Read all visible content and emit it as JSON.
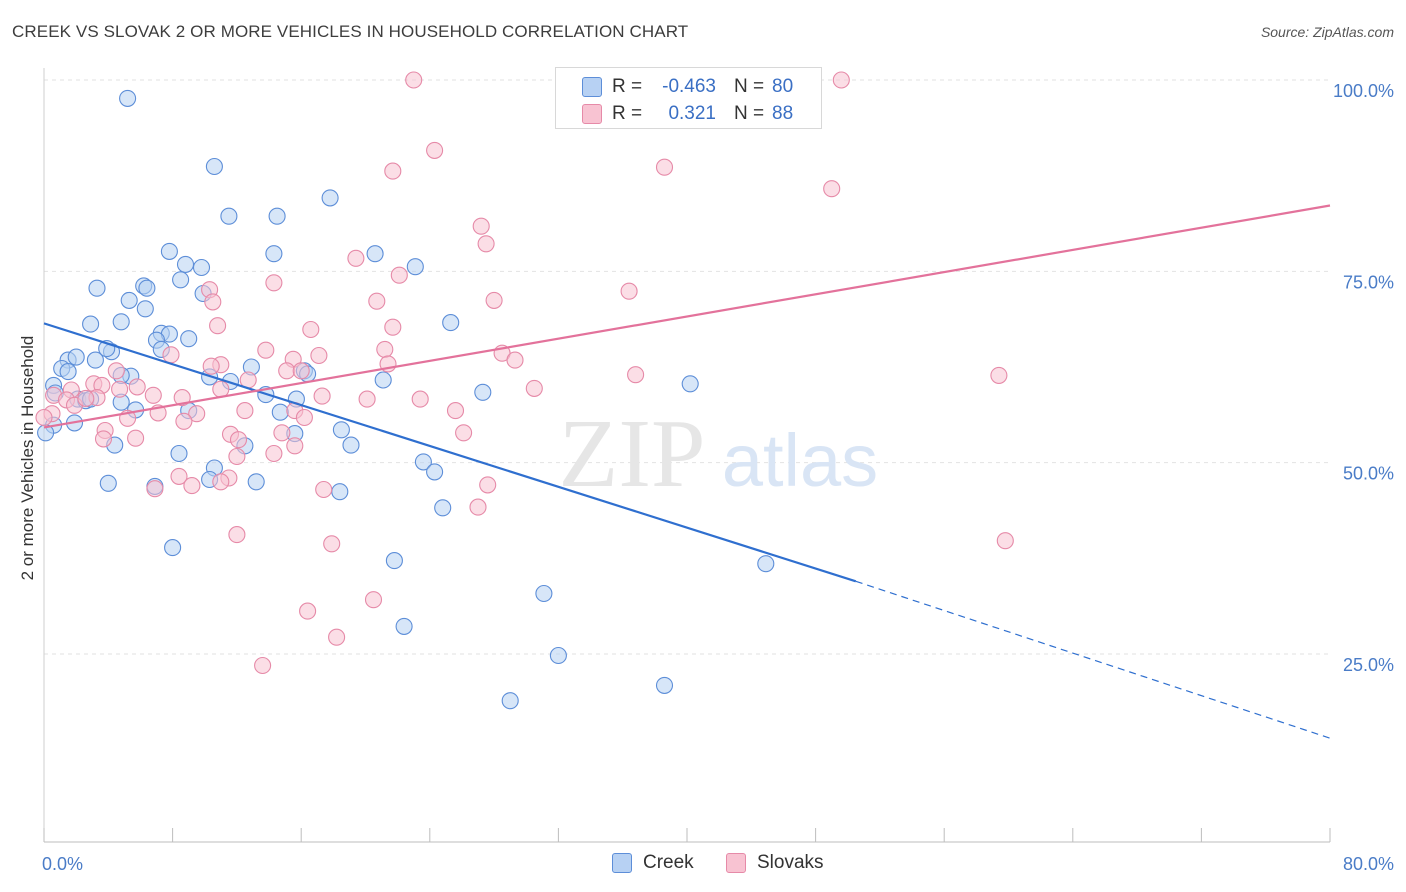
{
  "title": "CREEK VS SLOVAK 2 OR MORE VEHICLES IN HOUSEHOLD CORRELATION CHART",
  "source": "Source: ZipAtlas.com",
  "watermark": {
    "zip": "ZIP",
    "atlas": "atlas"
  },
  "legend": {
    "r_label": "R =",
    "n_label": "N =",
    "rows": [
      {
        "r": "-0.463",
        "n": "80",
        "fill": "#b7d1f3",
        "stroke": "#5d8ed8"
      },
      {
        "r": "0.321",
        "n": "88",
        "fill": "#f8c3d2",
        "stroke": "#e68aa8"
      }
    ]
  },
  "bottom_legend": [
    "Creek",
    "Slovaks"
  ],
  "chart_data": {
    "type": "scatter",
    "title": "CREEK VS SLOVAK 2 OR MORE VEHICLES IN HOUSEHOLD CORRELATION CHART",
    "xlabel": "",
    "ylabel": "2 or more Vehicles in Household",
    "xlim": [
      0,
      80
    ],
    "ylim": [
      0,
      105
    ],
    "x_tick_labels": [
      "0.0%",
      "80.0%"
    ],
    "y_ticks": [
      25,
      50,
      75,
      100
    ],
    "y_tick_labels": [
      "25.0%",
      "50.0%",
      "75.0%",
      "100.0%"
    ],
    "grid": true,
    "legend_position": "top-center",
    "series": [
      {
        "name": "Creek",
        "color": "#5d8ed8",
        "fill": "#b7d1f3",
        "trend": {
          "x": [
            0,
            50.5
          ],
          "y": [
            68.2,
            34.5
          ],
          "dashed_to": [
            80,
            14.0
          ],
          "color": "#2f6fcf"
        },
        "points": [
          [
            5.2,
            97.6
          ],
          [
            10.6,
            88.7
          ],
          [
            11.5,
            82.2
          ],
          [
            14.5,
            82.2
          ],
          [
            17.8,
            84.6
          ],
          [
            7.8,
            77.6
          ],
          [
            14.3,
            77.3
          ],
          [
            20.6,
            77.3
          ],
          [
            23.1,
            75.6
          ],
          [
            8.8,
            75.9
          ],
          [
            9.8,
            75.5
          ],
          [
            8.5,
            73.9
          ],
          [
            3.3,
            72.8
          ],
          [
            6.2,
            73.1
          ],
          [
            6.4,
            72.8
          ],
          [
            9.9,
            72.1
          ],
          [
            5.3,
            71.2
          ],
          [
            6.3,
            70.1
          ],
          [
            2.9,
            68.1
          ],
          [
            4.8,
            68.4
          ],
          [
            25.3,
            68.3
          ],
          [
            7.3,
            66.9
          ],
          [
            7.8,
            66.8
          ],
          [
            7.0,
            66.0
          ],
          [
            9.0,
            66.2
          ],
          [
            7.3,
            64.8
          ],
          [
            4.2,
            64.5
          ],
          [
            3.9,
            64.9
          ],
          [
            1.5,
            63.4
          ],
          [
            2.0,
            63.8
          ],
          [
            3.2,
            63.4
          ],
          [
            1.1,
            62.3
          ],
          [
            1.5,
            61.9
          ],
          [
            5.4,
            61.3
          ],
          [
            4.8,
            61.4
          ],
          [
            12.9,
            62.5
          ],
          [
            16.2,
            62.0
          ],
          [
            16.4,
            61.6
          ],
          [
            10.3,
            61.2
          ],
          [
            11.6,
            60.6
          ],
          [
            21.1,
            60.8
          ],
          [
            40.2,
            60.3
          ],
          [
            0.6,
            60.1
          ],
          [
            0.7,
            59.1
          ],
          [
            27.3,
            59.2
          ],
          [
            2.1,
            58.3
          ],
          [
            2.6,
            58.1
          ],
          [
            2.9,
            58.3
          ],
          [
            4.8,
            57.9
          ],
          [
            13.8,
            58.9
          ],
          [
            15.7,
            58.3
          ],
          [
            5.7,
            56.9
          ],
          [
            9.0,
            56.8
          ],
          [
            14.7,
            56.6
          ],
          [
            18.5,
            54.3
          ],
          [
            1.9,
            55.2
          ],
          [
            0.6,
            54.9
          ],
          [
            0.1,
            53.9
          ],
          [
            15.6,
            53.8
          ],
          [
            8.4,
            51.2
          ],
          [
            4.4,
            52.3
          ],
          [
            12.5,
            52.2
          ],
          [
            19.1,
            52.3
          ],
          [
            23.6,
            50.1
          ],
          [
            10.6,
            49.3
          ],
          [
            24.3,
            48.8
          ],
          [
            10.3,
            47.8
          ],
          [
            4.0,
            47.3
          ],
          [
            6.9,
            46.9
          ],
          [
            13.2,
            47.5
          ],
          [
            18.4,
            46.2
          ],
          [
            24.8,
            44.1
          ],
          [
            8.0,
            38.9
          ],
          [
            21.8,
            37.2
          ],
          [
            44.9,
            36.8
          ],
          [
            31.1,
            32.9
          ],
          [
            22.4,
            28.6
          ],
          [
            32.0,
            24.8
          ],
          [
            38.6,
            20.9
          ],
          [
            29.0,
            18.9
          ]
        ]
      },
      {
        "name": "Slovaks",
        "color": "#e68aa8",
        "fill": "#f8c3d2",
        "trend": {
          "x": [
            0,
            80
          ],
          "y": [
            54.6,
            83.6
          ],
          "color": "#e3729b"
        },
        "points": [
          [
            23.0,
            100.0
          ],
          [
            37.6,
            100.3
          ],
          [
            49.6,
            100.0
          ],
          [
            24.3,
            90.8
          ],
          [
            21.7,
            88.1
          ],
          [
            38.6,
            88.6
          ],
          [
            49.0,
            85.8
          ],
          [
            27.2,
            80.9
          ],
          [
            27.5,
            78.6
          ],
          [
            19.4,
            76.7
          ],
          [
            14.3,
            73.5
          ],
          [
            22.1,
            74.5
          ],
          [
            10.3,
            72.6
          ],
          [
            36.4,
            72.4
          ],
          [
            20.7,
            71.1
          ],
          [
            10.5,
            71.0
          ],
          [
            28.0,
            71.2
          ],
          [
            16.6,
            67.4
          ],
          [
            21.7,
            67.7
          ],
          [
            10.8,
            67.9
          ],
          [
            13.8,
            64.7
          ],
          [
            21.2,
            64.8
          ],
          [
            17.1,
            64.0
          ],
          [
            28.5,
            64.3
          ],
          [
            15.5,
            63.5
          ],
          [
            7.9,
            64.1
          ],
          [
            11.0,
            62.8
          ],
          [
            21.4,
            62.9
          ],
          [
            15.1,
            62.0
          ],
          [
            16.0,
            62.0
          ],
          [
            4.5,
            62.0
          ],
          [
            12.7,
            60.8
          ],
          [
            36.8,
            61.5
          ],
          [
            59.4,
            61.4
          ],
          [
            3.1,
            60.3
          ],
          [
            3.6,
            60.1
          ],
          [
            5.8,
            59.9
          ],
          [
            4.7,
            59.6
          ],
          [
            1.7,
            59.5
          ],
          [
            11.0,
            59.6
          ],
          [
            30.5,
            59.7
          ],
          [
            0.6,
            58.8
          ],
          [
            1.4,
            58.2
          ],
          [
            3.3,
            58.5
          ],
          [
            6.8,
            58.8
          ],
          [
            8.6,
            58.5
          ],
          [
            17.3,
            58.7
          ],
          [
            20.1,
            58.3
          ],
          [
            23.4,
            58.3
          ],
          [
            1.9,
            57.5
          ],
          [
            2.6,
            58.4
          ],
          [
            7.1,
            56.5
          ],
          [
            5.2,
            55.8
          ],
          [
            9.5,
            56.4
          ],
          [
            12.5,
            56.8
          ],
          [
            15.6,
            56.8
          ],
          [
            25.6,
            56.8
          ],
          [
            8.7,
            55.4
          ],
          [
            16.2,
            55.9
          ],
          [
            3.8,
            54.2
          ],
          [
            11.6,
            53.7
          ],
          [
            14.8,
            53.9
          ],
          [
            0.5,
            56.4
          ],
          [
            0.0,
            55.9
          ],
          [
            3.7,
            53.1
          ],
          [
            5.7,
            53.2
          ],
          [
            12.1,
            53.0
          ],
          [
            26.1,
            53.9
          ],
          [
            15.6,
            52.2
          ],
          [
            12.0,
            50.8
          ],
          [
            14.3,
            51.2
          ],
          [
            8.4,
            48.2
          ],
          [
            11.5,
            48.0
          ],
          [
            11.0,
            47.5
          ],
          [
            17.4,
            46.5
          ],
          [
            6.9,
            46.6
          ],
          [
            27.6,
            47.1
          ],
          [
            27.0,
            44.2
          ],
          [
            12.0,
            40.6
          ],
          [
            17.9,
            39.4
          ],
          [
            59.8,
            39.8
          ],
          [
            20.5,
            32.1
          ],
          [
            16.4,
            30.6
          ],
          [
            18.2,
            27.2
          ],
          [
            13.6,
            23.5
          ],
          [
            10.4,
            62.6
          ],
          [
            9.2,
            47.0
          ],
          [
            29.3,
            63.4
          ]
        ]
      }
    ]
  }
}
